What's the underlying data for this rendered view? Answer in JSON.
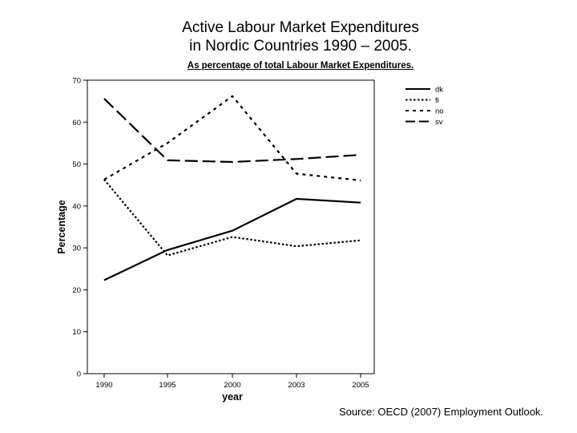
{
  "header": {
    "title_line1": "Active Labour Market Expenditures",
    "title_line2": "in Nordic Countries 1990 – 2005.",
    "subtitle": "As percentage of total Labour Market Expenditures."
  },
  "footer": {
    "source": "Source: OECD (2007) Employment Outlook."
  },
  "chart_data": {
    "type": "line",
    "title": "Active Labour Market Expenditures in Nordic Countries 1990 – 2005.",
    "subtitle": "As percentage of total Labour Market Expenditures.",
    "xlabel": "year",
    "ylabel": "Percentage",
    "categories": [
      "1990",
      "1995",
      "2000",
      "2003",
      "2005"
    ],
    "ylim": [
      0,
      70
    ],
    "yticks": [
      0,
      10,
      20,
      30,
      40,
      50,
      60,
      70
    ],
    "grid": false,
    "legend_position": "right",
    "series": [
      {
        "name": "dk",
        "style": "solid",
        "values": [
          22.3,
          29.5,
          34.1,
          41.7,
          40.8
        ]
      },
      {
        "name": "fi",
        "style": "dotted",
        "values": [
          46.3,
          28.2,
          32.6,
          30.4,
          31.8
        ]
      },
      {
        "name": "no",
        "style": "dashed",
        "values": [
          46.3,
          55.0,
          66.2,
          47.7,
          46.1
        ]
      },
      {
        "name": "sv",
        "style": "longdash",
        "values": [
          65.6,
          50.9,
          50.5,
          51.2,
          52.2
        ]
      }
    ]
  }
}
